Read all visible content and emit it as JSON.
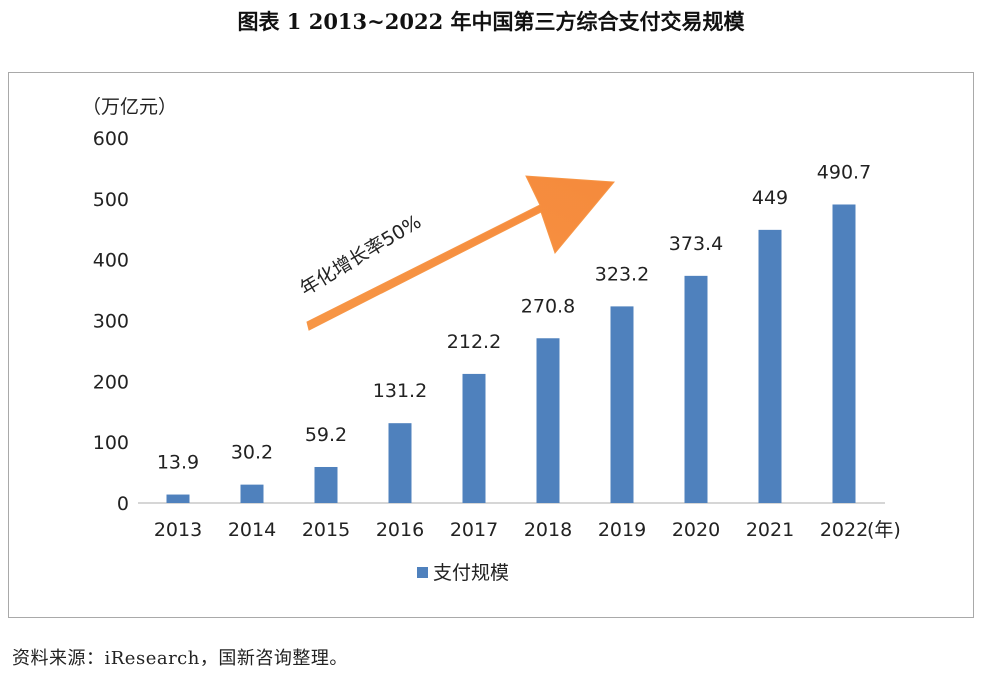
{
  "figure_title": "图表 1 2013~2022 年中国第三方综合支付交易规模",
  "source_note": "资料来源：iResearch，国新咨询整理。",
  "annotation": "年化增长率50%",
  "colors": {
    "bar": "#4f81bd",
    "arrow": "#f79646",
    "frame": "#a9a9a9"
  },
  "chart_data": {
    "type": "bar",
    "title": "",
    "ylabel": "（万亿元）",
    "xlabel": "(年)",
    "categories": [
      "2013",
      "2014",
      "2015",
      "2016",
      "2017",
      "2018",
      "2019",
      "2020",
      "2021",
      "2022"
    ],
    "series": [
      {
        "name": "支付规模",
        "values": [
          13.9,
          30.2,
          59.2,
          131.2,
          212.2,
          270.8,
          323.2,
          373.4,
          449,
          490.7
        ]
      }
    ],
    "data_labels": [
      "13.9",
      "30.2",
      "59.2",
      "131.2",
      "212.2",
      "270.8",
      "323.2",
      "373.4",
      "449",
      "490.7"
    ],
    "y_ticks": [
      "0",
      "100",
      "200",
      "300",
      "400",
      "500",
      "600"
    ],
    "ylim": [
      0,
      600
    ],
    "grid": false,
    "legend": "bottom"
  }
}
